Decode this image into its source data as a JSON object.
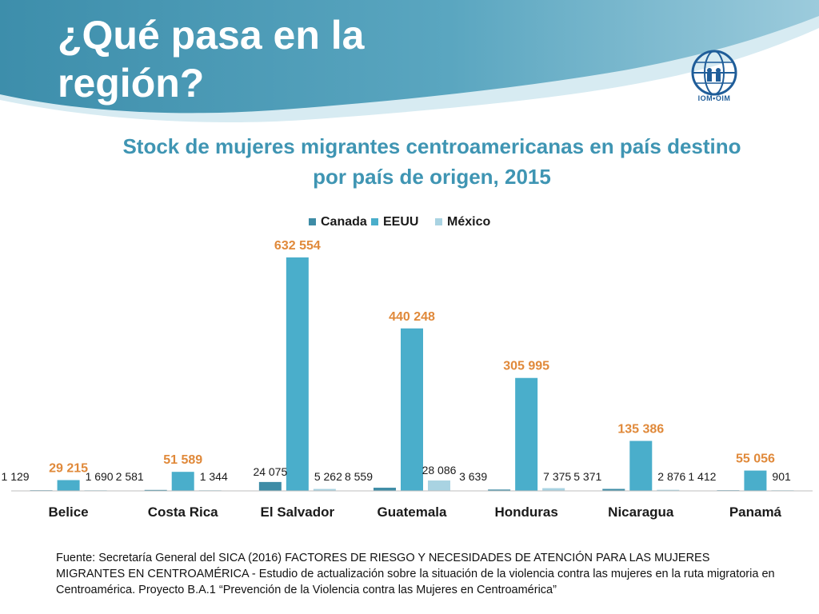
{
  "slide": {
    "title_line1": "¿Qué pasa en la",
    "title_line2": "región?",
    "logo_text": "IOM•OIM",
    "source_text": "Fuente: Secretaría General del SICA (2016) FACTORES DE RIESGO Y NECESIDADES DE ATENCIÓN PARA LAS MUJERES MIGRANTES EN CENTROAMÉRICA - Estudio de actualización sobre la situación de la violencia contra las mujeres en la ruta migratoria en Centroamérica. Proyecto B.A.1 “Prevención de la Violencia contra las Mujeres en Centroamérica”"
  },
  "colors": {
    "header_dark": "#4a9ab6",
    "header_light": "#cfe6ef",
    "canada": "#3e8ca6",
    "eeuu": "#4aaecb",
    "mexico": "#a9d3e2",
    "highlight_label": "#e0893a",
    "title": "#3f95b3"
  },
  "chart_data": {
    "type": "bar",
    "title": "Stock de mujeres migrantes centroamericanas en país destino por país de origen, 2015",
    "categories": [
      "Belice",
      "Costa Rica",
      "El Salvador",
      "Guatemala",
      "Honduras",
      "Nicaragua",
      "Panamá"
    ],
    "series": [
      {
        "name": "Canada",
        "values": [
          1129,
          2581,
          24075,
          8559,
          3639,
          5371,
          1412
        ],
        "labels": [
          "1 129",
          "2 581",
          "24 075",
          "8 559",
          "3 639",
          "5 371",
          "1 412"
        ]
      },
      {
        "name": "EEUU",
        "values": [
          29215,
          51589,
          632554,
          440248,
          305995,
          135386,
          55056
        ],
        "labels": [
          "29 215",
          "51 589",
          "632 554",
          "440 248",
          "305 995",
          "135 386",
          "55 056"
        ]
      },
      {
        "name": "México",
        "values": [
          1690,
          1344,
          5262,
          28086,
          7375,
          2876,
          901
        ],
        "labels": [
          "1 690",
          "1 344",
          "5 262",
          "28 086",
          "7 375",
          "2 876",
          "901"
        ]
      }
    ],
    "legend_position": "top",
    "ylim": [
      0,
      660000
    ],
    "xlabel": "",
    "ylabel": ""
  }
}
